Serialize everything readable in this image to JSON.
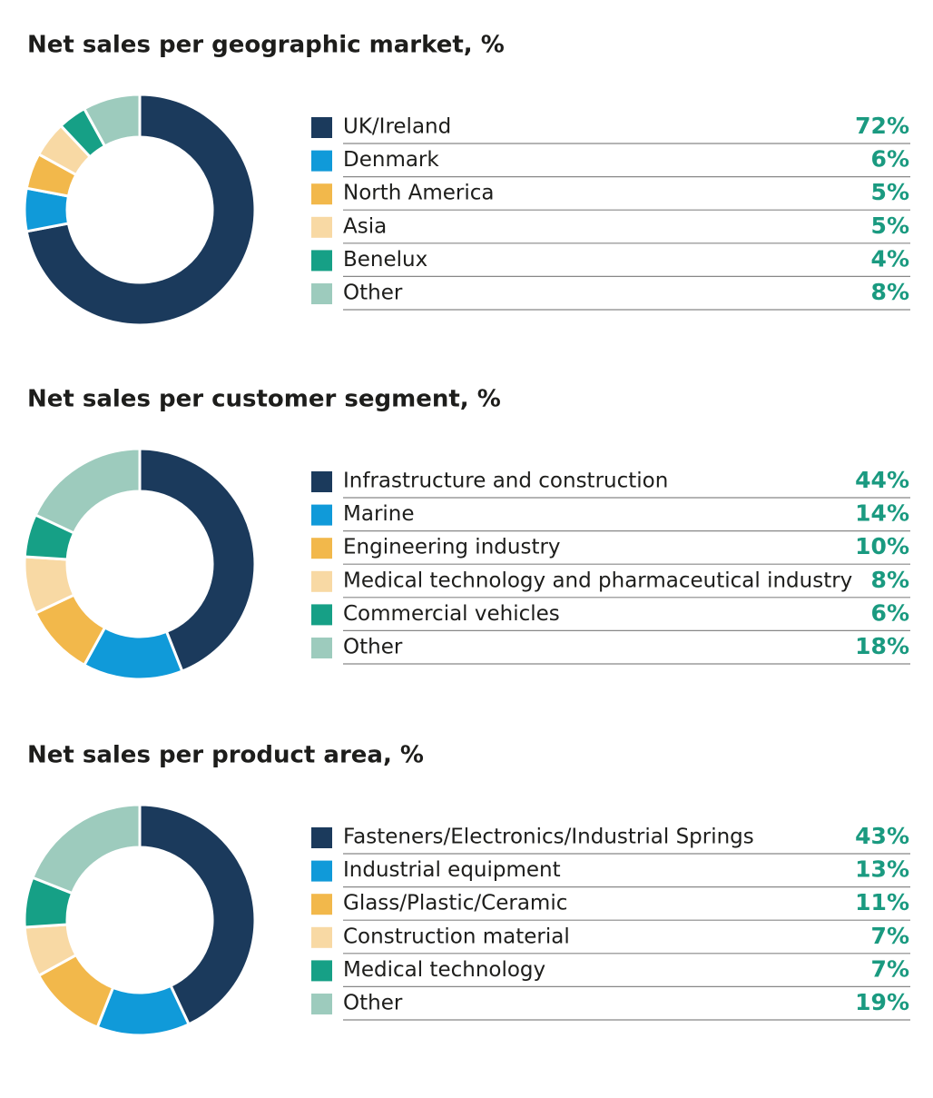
{
  "chart_data": [
    {
      "type": "pie",
      "title": "Net sales per geographic market, %",
      "categories": [
        "UK/Ireland",
        "Denmark",
        "North America",
        "Asia",
        "Benelux",
        "Other"
      ],
      "values": [
        72,
        6,
        5,
        5,
        4,
        8
      ],
      "value_labels": [
        "72%",
        "6%",
        "5%",
        "5%",
        "4%",
        "8%"
      ],
      "colors": [
        "#1b3a5c",
        "#109ad9",
        "#f2b84b",
        "#f8d9a4",
        "#16a086",
        "#9dcbbd"
      ]
    },
    {
      "type": "pie",
      "title": "Net sales per customer segment, %",
      "categories": [
        "Infrastructure and construction",
        "Marine",
        "Engineering industry",
        "Medical technology and pharmaceutical industry",
        "Commercial vehicles",
        "Other"
      ],
      "values": [
        44,
        14,
        10,
        8,
        6,
        18
      ],
      "value_labels": [
        "44%",
        "14%",
        "10%",
        "8%",
        "6%",
        "18%"
      ],
      "colors": [
        "#1b3a5c",
        "#109ad9",
        "#f2b84b",
        "#f8d9a4",
        "#16a086",
        "#9dcbbd"
      ]
    },
    {
      "type": "pie",
      "title": "Net sales per product area, %",
      "categories": [
        "Fasteners/Electronics/Industrial Springs",
        "Industrial equipment",
        "Glass/Plastic/Ceramic",
        "Construction material",
        "Medical technology",
        "Other"
      ],
      "values": [
        43,
        13,
        11,
        7,
        7,
        19
      ],
      "value_labels": [
        "43%",
        "13%",
        "11%",
        "7%",
        "7%",
        "19%"
      ],
      "colors": [
        "#1b3a5c",
        "#109ad9",
        "#f2b84b",
        "#f8d9a4",
        "#16a086",
        "#9dcbbd"
      ]
    }
  ]
}
